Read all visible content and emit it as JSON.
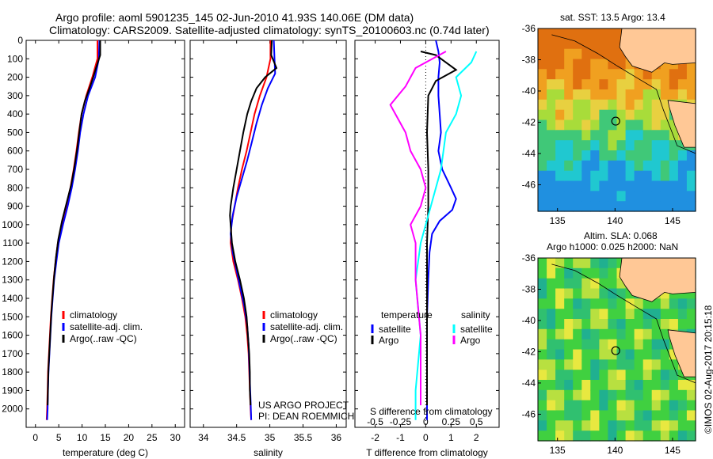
{
  "header": {
    "line1": "Argo profile: aoml 5901235_145 02-Jun-2010 41.93S 140.06E (DM data)",
    "line2": "Climatology: CARS2009. Satellite-adjusted climatology: synTS_20100603.nc (0.74d later)"
  },
  "credit": "©IMOS 02-Aug-2017 20:15:18",
  "project": {
    "line1": "US ARGO PROJECT",
    "line2": "PI: DEAN ROEMMICH"
  },
  "colors": {
    "climatology": "#ff0000",
    "satellite": "#0000ff",
    "argo": "#000000",
    "argo_salinity": "#ff00ff",
    "satellite_salinity": "#00ffff",
    "land": "#ffc896"
  },
  "chart_data": [
    {
      "type": "line",
      "xlabel": "temperature (deg C)",
      "ylabel": "",
      "xlim": [
        -2,
        32
      ],
      "ylim": [
        2100,
        0
      ],
      "x_ticks": [
        0,
        5,
        10,
        15,
        20,
        25,
        30
      ],
      "y_ticks": [
        0,
        100,
        200,
        300,
        400,
        500,
        600,
        700,
        800,
        900,
        1000,
        1100,
        1200,
        1300,
        1400,
        1500,
        1600,
        1700,
        1800,
        1900,
        2000
      ],
      "legend": [
        "climatology",
        "satellite-adj. clim.",
        "Argo(..raw -QC)"
      ],
      "series": [
        {
          "name": "climatology",
          "color": "#ff0000",
          "points": [
            [
              13.3,
              0
            ],
            [
              13.3,
              100
            ],
            [
              12.2,
              200
            ],
            [
              10.9,
              300
            ],
            [
              9.9,
              400
            ],
            [
              9.3,
              500
            ],
            [
              8.8,
              600
            ],
            [
              8.2,
              700
            ],
            [
              7.5,
              800
            ],
            [
              6.6,
              900
            ],
            [
              5.6,
              1000
            ],
            [
              4.8,
              1100
            ],
            [
              4.3,
              1200
            ],
            [
              3.9,
              1300
            ],
            [
              3.6,
              1400
            ],
            [
              3.3,
              1500
            ],
            [
              3.1,
              1600
            ],
            [
              2.9,
              1700
            ],
            [
              2.7,
              1800
            ],
            [
              2.6,
              1900
            ],
            [
              2.5,
              2000
            ],
            [
              2.4,
              2060
            ]
          ]
        },
        {
          "name": "satellite-adj. clim.",
          "color": "#0000ff",
          "points": [
            [
              13.7,
              0
            ],
            [
              13.6,
              100
            ],
            [
              12.8,
              200
            ],
            [
              11.3,
              300
            ],
            [
              10.3,
              400
            ],
            [
              9.6,
              500
            ],
            [
              9.1,
              600
            ],
            [
              8.5,
              700
            ],
            [
              7.8,
              800
            ],
            [
              6.9,
              900
            ],
            [
              5.9,
              1000
            ],
            [
              5.0,
              1100
            ],
            [
              4.5,
              1200
            ],
            [
              4.0,
              1300
            ],
            [
              3.7,
              1400
            ],
            [
              3.4,
              1500
            ],
            [
              3.2,
              1600
            ],
            [
              3.0,
              1700
            ],
            [
              2.8,
              1800
            ],
            [
              2.7,
              1900
            ],
            [
              2.6,
              2000
            ],
            [
              2.5,
              2060
            ]
          ]
        },
        {
          "name": "Argo(..raw -QC)",
          "color": "#000000",
          "points": [
            [
              13.9,
              0
            ],
            [
              13.9,
              80
            ],
            [
              13.0,
              150
            ],
            [
              12.4,
              200
            ],
            [
              11.6,
              260
            ],
            [
              10.6,
              330
            ],
            [
              9.9,
              400
            ],
            [
              9.5,
              480
            ],
            [
              9.0,
              580
            ],
            [
              8.4,
              680
            ],
            [
              7.7,
              780
            ],
            [
              6.7,
              880
            ],
            [
              5.7,
              980
            ],
            [
              4.9,
              1080
            ],
            [
              4.4,
              1180
            ],
            [
              4.0,
              1280
            ],
            [
              3.7,
              1380
            ],
            [
              3.4,
              1480
            ],
            [
              3.2,
              1580
            ],
            [
              3.0,
              1680
            ],
            [
              2.8,
              1780
            ],
            [
              2.7,
              1880
            ],
            [
              2.6,
              1980
            ]
          ]
        }
      ]
    },
    {
      "type": "line",
      "xlabel": "salinity",
      "xlim": [
        33.8,
        36.15
      ],
      "ylim": [
        2100,
        0
      ],
      "x_ticks": [
        34,
        34.5,
        35,
        35.5,
        36
      ],
      "legend": [
        "climatology",
        "satellite-adj. clim.",
        "Argo(..raw -QC)"
      ],
      "series": [
        {
          "name": "climatology",
          "color": "#ff0000",
          "points": [
            [
              35.01,
              0
            ],
            [
              35.01,
              100
            ],
            [
              34.95,
              200
            ],
            [
              34.85,
              300
            ],
            [
              34.77,
              400
            ],
            [
              34.71,
              500
            ],
            [
              34.65,
              600
            ],
            [
              34.58,
              700
            ],
            [
              34.52,
              800
            ],
            [
              34.47,
              900
            ],
            [
              34.42,
              1000
            ],
            [
              34.41,
              1100
            ],
            [
              34.45,
              1200
            ],
            [
              34.52,
              1300
            ],
            [
              34.58,
              1400
            ],
            [
              34.63,
              1500
            ],
            [
              34.66,
              1600
            ],
            [
              34.68,
              1700
            ],
            [
              34.69,
              1800
            ],
            [
              34.7,
              1900
            ],
            [
              34.71,
              2000
            ],
            [
              34.72,
              2060
            ]
          ]
        },
        {
          "name": "satellite-adj. clim.",
          "color": "#0000ff",
          "points": [
            [
              35.06,
              0
            ],
            [
              35.07,
              100
            ],
            [
              35.08,
              180
            ],
            [
              34.97,
              260
            ],
            [
              34.88,
              350
            ],
            [
              34.8,
              450
            ],
            [
              34.73,
              550
            ],
            [
              34.66,
              650
            ],
            [
              34.58,
              750
            ],
            [
              34.5,
              850
            ],
            [
              34.44,
              950
            ],
            [
              34.41,
              1050
            ],
            [
              34.44,
              1150
            ],
            [
              34.5,
              1250
            ],
            [
              34.56,
              1350
            ],
            [
              34.62,
              1450
            ],
            [
              34.66,
              1550
            ],
            [
              34.68,
              1650
            ],
            [
              34.69,
              1750
            ],
            [
              34.7,
              1850
            ],
            [
              34.71,
              1950
            ],
            [
              34.72,
              2060
            ]
          ]
        },
        {
          "name": "Argo(..raw -QC)",
          "color": "#000000",
          "points": [
            [
              35.03,
              0
            ],
            [
              35.02,
              80
            ],
            [
              35.1,
              150
            ],
            [
              34.93,
              200
            ],
            [
              34.8,
              260
            ],
            [
              34.72,
              330
            ],
            [
              34.66,
              400
            ],
            [
              34.6,
              500
            ],
            [
              34.55,
              600
            ],
            [
              34.5,
              700
            ],
            [
              34.45,
              800
            ],
            [
              34.41,
              900
            ],
            [
              34.4,
              950
            ],
            [
              34.41,
              1000
            ],
            [
              34.43,
              1100
            ],
            [
              34.48,
              1200
            ],
            [
              34.55,
              1300
            ],
            [
              34.61,
              1400
            ],
            [
              34.65,
              1500
            ],
            [
              34.67,
              1600
            ],
            [
              34.69,
              1700
            ],
            [
              34.7,
              1800
            ],
            [
              34.7,
              1900
            ],
            [
              34.71,
              1980
            ]
          ]
        }
      ]
    },
    {
      "type": "line",
      "top_xlabel": "S difference from climatology",
      "xlabel": "T difference from climatology",
      "xlim": [
        -2.8,
        2.9
      ],
      "ylim": [
        2100,
        0
      ],
      "top_xlim": [
        -0.7,
        0.725
      ],
      "x_ticks": [
        -2,
        -1,
        0,
        1,
        2
      ],
      "top_x_ticks": [
        -0.5,
        -0.25,
        0,
        0.25,
        0.5
      ],
      "legend_title_left": "temperature",
      "legend_title_right": "salinity",
      "legend": [
        "satellite",
        "Argo",
        "satellite",
        "Argo"
      ],
      "series": [
        {
          "name": "satellite",
          "group": "temperature",
          "color": "#0000ff",
          "points": [
            [
              0.4,
              0
            ],
            [
              0.5,
              60
            ],
            [
              0.55,
              120
            ],
            [
              0.5,
              200
            ],
            [
              0.5,
              300
            ],
            [
              0.55,
              400
            ],
            [
              0.6,
              500
            ],
            [
              0.5,
              600
            ],
            [
              0.65,
              700
            ],
            [
              1.0,
              800
            ],
            [
              1.2,
              860
            ],
            [
              1.05,
              920
            ],
            [
              0.55,
              980
            ],
            [
              0.25,
              1050
            ],
            [
              0.15,
              1150
            ],
            [
              0.1,
              1300
            ],
            [
              0.05,
              1500
            ],
            [
              0.05,
              1700
            ],
            [
              0.05,
              1900
            ],
            [
              0.05,
              2060
            ]
          ]
        },
        {
          "name": "Argo",
          "group": "temperature",
          "color": "#000000",
          "points": [
            [
              -0.2,
              60
            ],
            [
              0.4,
              80
            ],
            [
              1.2,
              160
            ],
            [
              0.4,
              220
            ],
            [
              0.1,
              300
            ],
            [
              0.05,
              500
            ],
            [
              0.1,
              700
            ],
            [
              0.1,
              900
            ],
            [
              0.05,
              1100
            ],
            [
              0.05,
              1300
            ],
            [
              0.05,
              1600
            ],
            [
              0.05,
              1900
            ],
            [
              0.05,
              1980
            ]
          ]
        },
        {
          "name": "satellite",
          "group": "salinity",
          "color": "#00ffff",
          "points": [
            [
              0.5,
              60
            ],
            [
              0.45,
              120
            ],
            [
              0.3,
              200
            ],
            [
              0.35,
              300
            ],
            [
              0.3,
              400
            ],
            [
              0.2,
              500
            ],
            [
              0.15,
              700
            ],
            [
              0.05,
              900
            ],
            [
              -0.05,
              1100
            ],
            [
              -0.1,
              1300
            ],
            [
              -0.05,
              1600
            ],
            [
              -0.1,
              1900
            ],
            [
              -0.1,
              2060
            ]
          ]
        },
        {
          "name": "Argo",
          "group": "salinity",
          "color": "#ff00ff",
          "points": [
            [
              0.2,
              60
            ],
            [
              -0.1,
              150
            ],
            [
              -0.2,
              250
            ],
            [
              -0.35,
              350
            ],
            [
              -0.3,
              400
            ],
            [
              -0.2,
              500
            ],
            [
              -0.15,
              600
            ],
            [
              -0.05,
              700
            ],
            [
              0.0,
              800
            ],
            [
              -0.05,
              900
            ],
            [
              -0.15,
              1000
            ],
            [
              -0.1,
              1100
            ],
            [
              -0.1,
              1300
            ],
            [
              -0.05,
              1600
            ],
            [
              -0.05,
              1800
            ],
            [
              -0.05,
              1980
            ]
          ]
        }
      ]
    },
    {
      "type": "heatmap",
      "title": "sat. SST: 13.5  Argo: 13.4",
      "xlim": [
        133.3,
        147
      ],
      "ylim": [
        -47.7,
        -36
      ],
      "x_ticks": [
        135,
        140,
        145
      ],
      "y_ticks": [
        -36,
        -38,
        -40,
        -42,
        -44,
        -46
      ],
      "marker": [
        140.06,
        -41.93
      ]
    },
    {
      "type": "heatmap",
      "title_line1": "Altim. SLA: 0.068",
      "title_line2": "Argo h1000: 0.025 h2000: NaN",
      "xlim": [
        133.3,
        147
      ],
      "ylim": [
        -47.7,
        -36
      ],
      "x_ticks": [
        135,
        140,
        145
      ],
      "y_ticks": [
        -36,
        -38,
        -40,
        -42,
        -44,
        -46
      ],
      "marker": [
        140.06,
        -41.93
      ]
    }
  ]
}
